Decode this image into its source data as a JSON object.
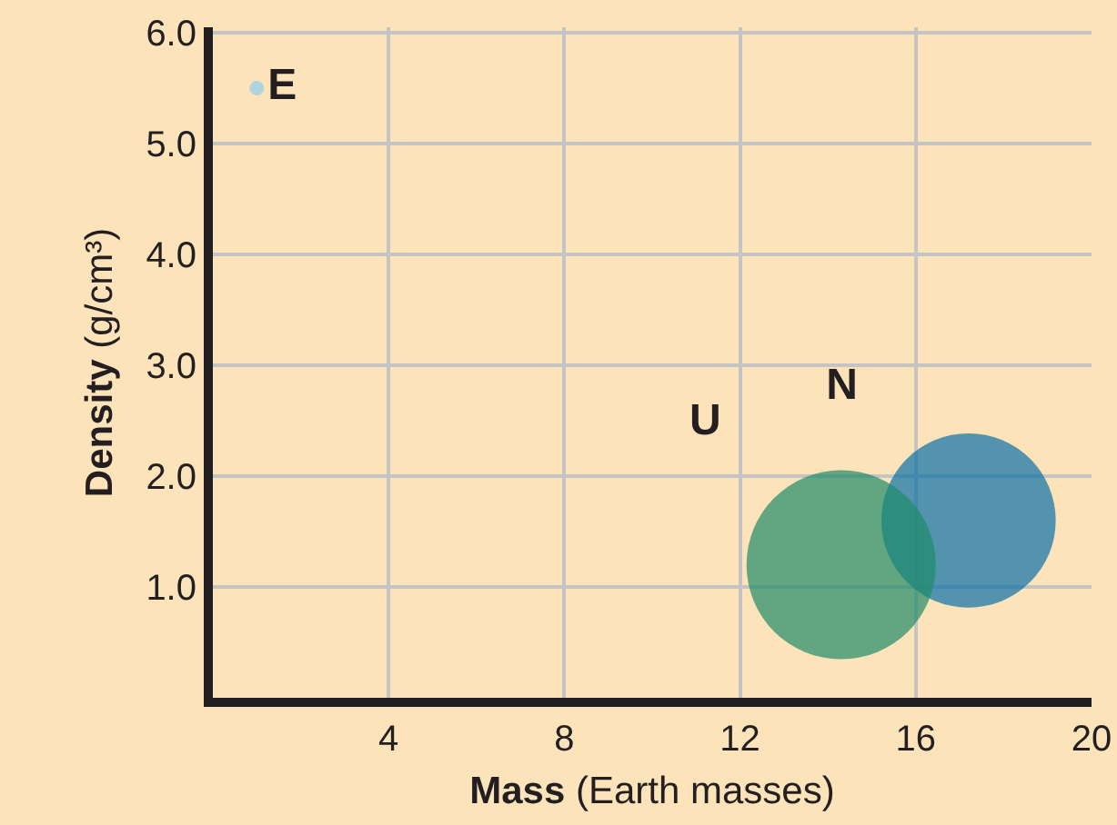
{
  "chart_data": {
    "type": "bubble",
    "xlabel": "Mass (Earth masses)",
    "ylabel": "Density (g/cm³)",
    "series": [
      {
        "name": "E",
        "color": "#8ecdf0",
        "x": [
          1
        ],
        "values": [
          5.5
        ],
        "sizes": [
          0.006
        ]
      },
      {
        "name": "N",
        "color": "#0a70a8",
        "x": [
          17.2
        ],
        "values": [
          1.6
        ],
        "sizes": [
          0.85
        ]
      },
      {
        "name": "U",
        "color": "#1e8b69",
        "x": [
          14.3
        ],
        "values": [
          1.2
        ],
        "sizes": [
          1
        ]
      }
    ],
    "xlim": [
      0,
      20
    ],
    "xticks": [
      4,
      8,
      12,
      16,
      20
    ],
    "ylim": [
      0,
      6.05
    ],
    "yticks": [
      {
        "value": 1,
        "label": "1.0"
      },
      {
        "value": 2,
        "label": "2.0"
      },
      {
        "value": 3,
        "label": "3.0"
      },
      {
        "value": 4,
        "label": "4.0"
      },
      {
        "value": 5,
        "label": "5.0"
      },
      {
        "value": 6,
        "label": "6.0"
      }
    ],
    "grid": true,
    "legend": false
  }
}
